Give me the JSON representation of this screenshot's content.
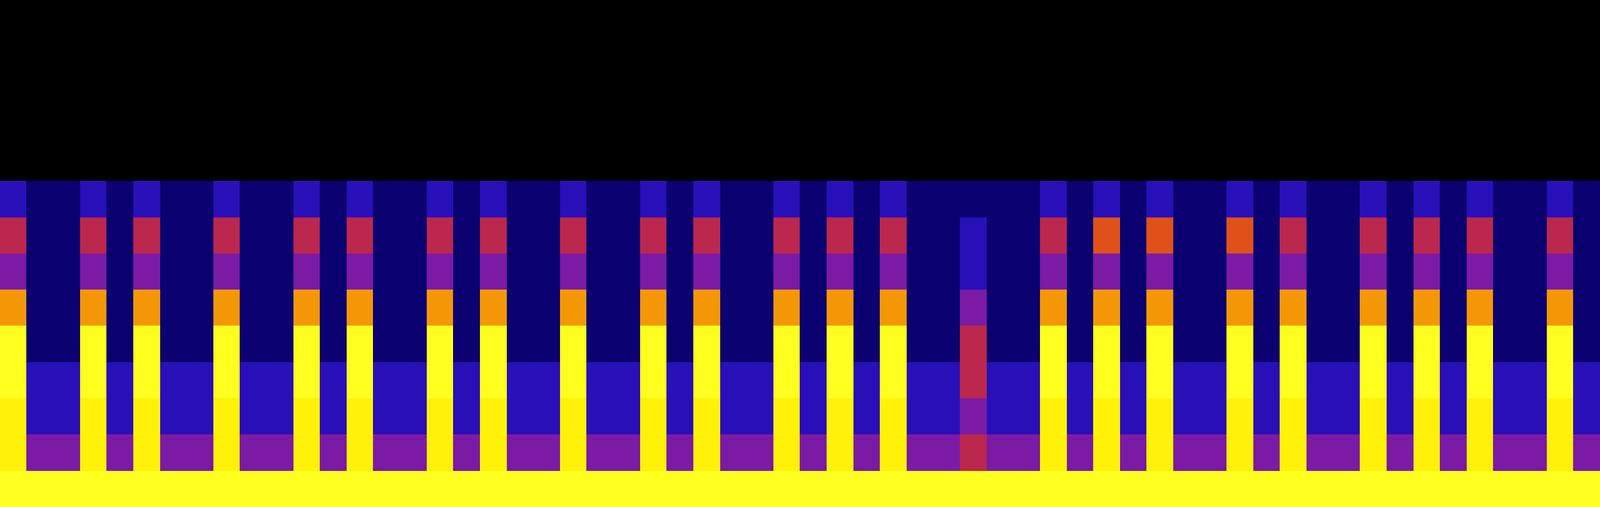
{
  "chart_data": {
    "type": "heatmap",
    "tick_labels": false,
    "value_range": [
      0,
      9
    ],
    "cells": [
      [
        0,
        0,
        0,
        0,
        0,
        0,
        0,
        0,
        0,
        0,
        0,
        0,
        0,
        0,
        0,
        0,
        0,
        0,
        0,
        0,
        0,
        0,
        0,
        0,
        0,
        0,
        0,
        0,
        0,
        0,
        0,
        0,
        0,
        0,
        0,
        0,
        0,
        0,
        0,
        0,
        0,
        0,
        0,
        0,
        0,
        0,
        0,
        0,
        0,
        0,
        0,
        0,
        0,
        0,
        0,
        0,
        0,
        0,
        0,
        0
      ],
      [
        0,
        0,
        0,
        0,
        0,
        0,
        0,
        0,
        0,
        0,
        0,
        0,
        0,
        0,
        0,
        0,
        0,
        0,
        0,
        0,
        0,
        0,
        0,
        0,
        0,
        0,
        0,
        0,
        0,
        0,
        0,
        0,
        0,
        0,
        0,
        0,
        0,
        0,
        0,
        0,
        0,
        0,
        0,
        0,
        0,
        0,
        0,
        0,
        0,
        0,
        0,
        0,
        0,
        0,
        0,
        0,
        0,
        0,
        0,
        0
      ],
      [
        0,
        0,
        0,
        0,
        0,
        0,
        0,
        0,
        0,
        0,
        0,
        0,
        0,
        0,
        0,
        0,
        0,
        0,
        0,
        0,
        0,
        0,
        0,
        0,
        0,
        0,
        0,
        0,
        0,
        0,
        0,
        0,
        0,
        0,
        0,
        0,
        0,
        0,
        0,
        0,
        0,
        0,
        0,
        0,
        0,
        0,
        0,
        0,
        0,
        0,
        0,
        0,
        0,
        0,
        0,
        0,
        0,
        0,
        0,
        0
      ],
      [
        0,
        0,
        0,
        0,
        0,
        0,
        0,
        0,
        0,
        0,
        0,
        0,
        0,
        0,
        0,
        0,
        0,
        0,
        0,
        0,
        0,
        0,
        0,
        0,
        0,
        0,
        0,
        0,
        0,
        0,
        0,
        0,
        0,
        0,
        0,
        0,
        0,
        0,
        0,
        0,
        0,
        0,
        0,
        0,
        0,
        0,
        0,
        0,
        0,
        0,
        0,
        0,
        0,
        0,
        0,
        0,
        0,
        0,
        0,
        0
      ],
      [
        0,
        0,
        0,
        0,
        0,
        0,
        0,
        0,
        0,
        0,
        0,
        0,
        0,
        0,
        0,
        0,
        0,
        0,
        0,
        0,
        0,
        0,
        0,
        0,
        0,
        0,
        0,
        0,
        0,
        0,
        0,
        0,
        0,
        0,
        0,
        0,
        0,
        0,
        0,
        0,
        0,
        0,
        0,
        0,
        0,
        0,
        0,
        0,
        0,
        0,
        0,
        0,
        0,
        0,
        0,
        0,
        0,
        0,
        0,
        0
      ],
      [
        2,
        1,
        1,
        2,
        1,
        2,
        1,
        1,
        2,
        1,
        1,
        2,
        1,
        2,
        1,
        1,
        2,
        1,
        2,
        1,
        1,
        2,
        1,
        1,
        2,
        1,
        2,
        1,
        1,
        2,
        1,
        2,
        1,
        2,
        1,
        1,
        1,
        1,
        1,
        2,
        1,
        2,
        1,
        2,
        1,
        1,
        2,
        1,
        2,
        1,
        1,
        2,
        1,
        2,
        1,
        2,
        1,
        1,
        2,
        1
      ],
      [
        4,
        1,
        1,
        4,
        1,
        4,
        1,
        1,
        4,
        1,
        1,
        4,
        1,
        4,
        1,
        1,
        4,
        1,
        4,
        1,
        1,
        4,
        1,
        1,
        4,
        1,
        4,
        1,
        1,
        4,
        1,
        4,
        1,
        4,
        1,
        1,
        2,
        1,
        1,
        4,
        1,
        5,
        1,
        5,
        1,
        1,
        5,
        1,
        4,
        1,
        1,
        4,
        1,
        4,
        1,
        4,
        1,
        1,
        4,
        1
      ],
      [
        3,
        1,
        1,
        3,
        1,
        3,
        1,
        1,
        3,
        1,
        1,
        3,
        1,
        3,
        1,
        1,
        3,
        1,
        3,
        1,
        1,
        3,
        1,
        1,
        3,
        1,
        3,
        1,
        1,
        3,
        1,
        3,
        1,
        3,
        1,
        1,
        2,
        1,
        1,
        3,
        1,
        3,
        1,
        3,
        1,
        1,
        3,
        1,
        3,
        1,
        1,
        3,
        1,
        3,
        1,
        3,
        1,
        1,
        3,
        1
      ],
      [
        6,
        1,
        1,
        6,
        1,
        6,
        1,
        1,
        6,
        1,
        1,
        6,
        1,
        6,
        1,
        1,
        6,
        1,
        6,
        1,
        1,
        6,
        1,
        1,
        6,
        1,
        6,
        1,
        1,
        6,
        1,
        6,
        1,
        6,
        1,
        1,
        3,
        1,
        1,
        6,
        1,
        6,
        1,
        6,
        1,
        1,
        6,
        1,
        6,
        1,
        1,
        6,
        1,
        6,
        1,
        6,
        1,
        1,
        6,
        1
      ],
      [
        9,
        1,
        1,
        9,
        1,
        9,
        1,
        1,
        9,
        1,
        1,
        9,
        1,
        9,
        1,
        1,
        9,
        1,
        9,
        1,
        1,
        9,
        1,
        1,
        9,
        1,
        9,
        1,
        1,
        9,
        1,
        9,
        1,
        9,
        1,
        1,
        4,
        1,
        1,
        9,
        1,
        9,
        1,
        9,
        1,
        1,
        9,
        1,
        9,
        1,
        1,
        9,
        1,
        9,
        1,
        9,
        1,
        1,
        9,
        1
      ],
      [
        9,
        2,
        2,
        9,
        2,
        9,
        2,
        2,
        9,
        2,
        2,
        9,
        2,
        9,
        2,
        2,
        9,
        2,
        9,
        2,
        2,
        9,
        2,
        2,
        9,
        2,
        9,
        2,
        2,
        9,
        2,
        9,
        2,
        9,
        2,
        2,
        4,
        2,
        2,
        9,
        2,
        9,
        2,
        9,
        2,
        2,
        9,
        2,
        9,
        2,
        2,
        9,
        2,
        9,
        2,
        9,
        2,
        2,
        9,
        2
      ],
      [
        8,
        2,
        2,
        8,
        2,
        8,
        2,
        2,
        8,
        2,
        2,
        8,
        2,
        8,
        2,
        2,
        8,
        2,
        8,
        2,
        2,
        8,
        2,
        2,
        8,
        2,
        8,
        2,
        2,
        8,
        2,
        8,
        2,
        8,
        2,
        2,
        3,
        2,
        2,
        8,
        2,
        8,
        2,
        8,
        2,
        2,
        8,
        2,
        8,
        2,
        2,
        8,
        2,
        8,
        2,
        8,
        2,
        2,
        8,
        2
      ],
      [
        8,
        3,
        3,
        8,
        3,
        8,
        3,
        3,
        8,
        3,
        3,
        8,
        3,
        8,
        3,
        3,
        8,
        3,
        8,
        3,
        3,
        8,
        3,
        3,
        8,
        3,
        8,
        3,
        3,
        8,
        3,
        8,
        3,
        8,
        3,
        3,
        4,
        3,
        3,
        8,
        3,
        8,
        3,
        8,
        3,
        3,
        8,
        3,
        8,
        3,
        3,
        8,
        3,
        8,
        3,
        8,
        3,
        3,
        8,
        3
      ],
      [
        9,
        9,
        9,
        9,
        9,
        9,
        9,
        9,
        9,
        9,
        9,
        9,
        9,
        9,
        9,
        9,
        9,
        9,
        9,
        9,
        9,
        9,
        9,
        9,
        9,
        9,
        9,
        9,
        9,
        9,
        9,
        9,
        9,
        9,
        9,
        9,
        9,
        9,
        9,
        9,
        9,
        9,
        9,
        9,
        9,
        9,
        9,
        9,
        9,
        9,
        9,
        9,
        9,
        9,
        9,
        9,
        9,
        9,
        9,
        9
      ]
    ]
  }
}
